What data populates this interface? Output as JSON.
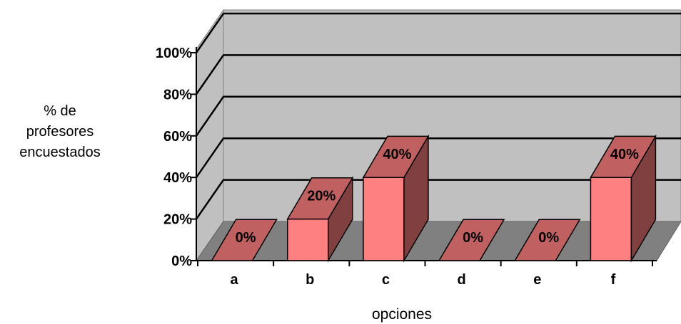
{
  "chart_data": {
    "type": "bar",
    "title": "",
    "categories": [
      "a",
      "b",
      "c",
      "d",
      "e",
      "f"
    ],
    "values": [
      0,
      20,
      40,
      0,
      0,
      40
    ],
    "value_labels": [
      "0%",
      "20%",
      "40%",
      "0%",
      "0%",
      "40%"
    ],
    "y_ticks": [
      "0%",
      "20%",
      "40%",
      "60%",
      "80%",
      "100%"
    ],
    "ylim": [
      0,
      100
    ],
    "xlabel": "opciones",
    "ylabel_lines": [
      "% de",
      "profesores",
      "encuestados"
    ],
    "grid": true,
    "style": "3d",
    "colors": {
      "bar_front": "#ff8080",
      "bar_top": "#c06060",
      "bar_side": "#804040",
      "wall": "#c0c0c0",
      "floor": "#808080"
    }
  }
}
